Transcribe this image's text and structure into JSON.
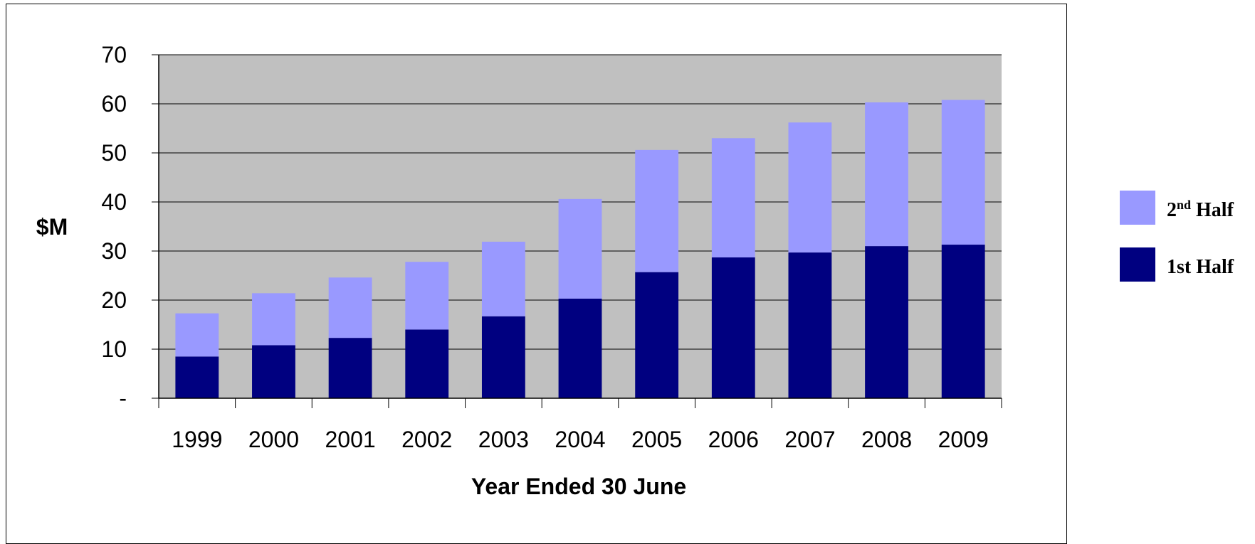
{
  "chart_data": {
    "type": "bar",
    "stacked": true,
    "categories": [
      "1999",
      "2000",
      "2001",
      "2002",
      "2003",
      "2004",
      "2005",
      "2006",
      "2007",
      "2008",
      "2009"
    ],
    "series": [
      {
        "name": "1st Half",
        "color": "#000080",
        "values": [
          8.5,
          10.8,
          12.3,
          14.0,
          16.7,
          20.3,
          25.7,
          28.7,
          29.7,
          31.0,
          31.3
        ]
      },
      {
        "name": "2nd Half",
        "color": "#9999FF",
        "values": [
          8.8,
          10.6,
          12.3,
          13.8,
          15.2,
          20.3,
          24.9,
          24.3,
          26.5,
          29.3,
          29.5
        ]
      }
    ],
    "ylabel": "$M",
    "xlabel": "Year Ended 30 June",
    "ylim": [
      0,
      70
    ],
    "yticks": [
      "-",
      "10",
      "20",
      "30",
      "40",
      "50",
      "60",
      "70"
    ],
    "grid": true,
    "plot_background": "#C0C0C0",
    "legend": {
      "placement": "right",
      "entries": [
        {
          "main": "2",
          "sup": "nd",
          "rest": " Half",
          "series": "2nd Half",
          "color": "#9999FF"
        },
        {
          "main": "1st Half",
          "sup": "",
          "rest": "",
          "series": "1st Half",
          "color": "#000080"
        }
      ]
    }
  }
}
